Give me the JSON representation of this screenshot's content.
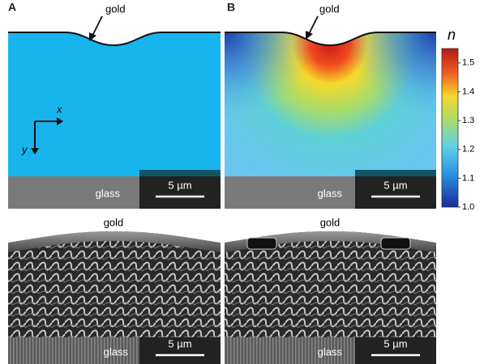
{
  "panels": [
    {
      "label": "A",
      "gold": "gold",
      "glass": "glass",
      "scale": "5 µm",
      "axes": {
        "x": "x",
        "y": "y"
      }
    },
    {
      "label": "B",
      "gold": "gold",
      "glass": "glass",
      "scale": "5 µm"
    }
  ],
  "sem": [
    {
      "gold": "gold",
      "glass": "glass",
      "scale": "5 µm"
    },
    {
      "gold": "gold",
      "glass": "glass",
      "scale": "5 µm"
    }
  ],
  "colorbar": {
    "symbol": "n",
    "lim": [
      1.0,
      1.55
    ],
    "ticks": [
      {
        "value": 1.0,
        "label": "1.0"
      },
      {
        "value": 1.1,
        "label": "1.1"
      },
      {
        "value": 1.2,
        "label": "1.2"
      },
      {
        "value": 1.3,
        "label": "1.3"
      },
      {
        "value": 1.4,
        "label": "1.4"
      },
      {
        "value": 1.5,
        "label": "1.5"
      }
    ]
  }
}
